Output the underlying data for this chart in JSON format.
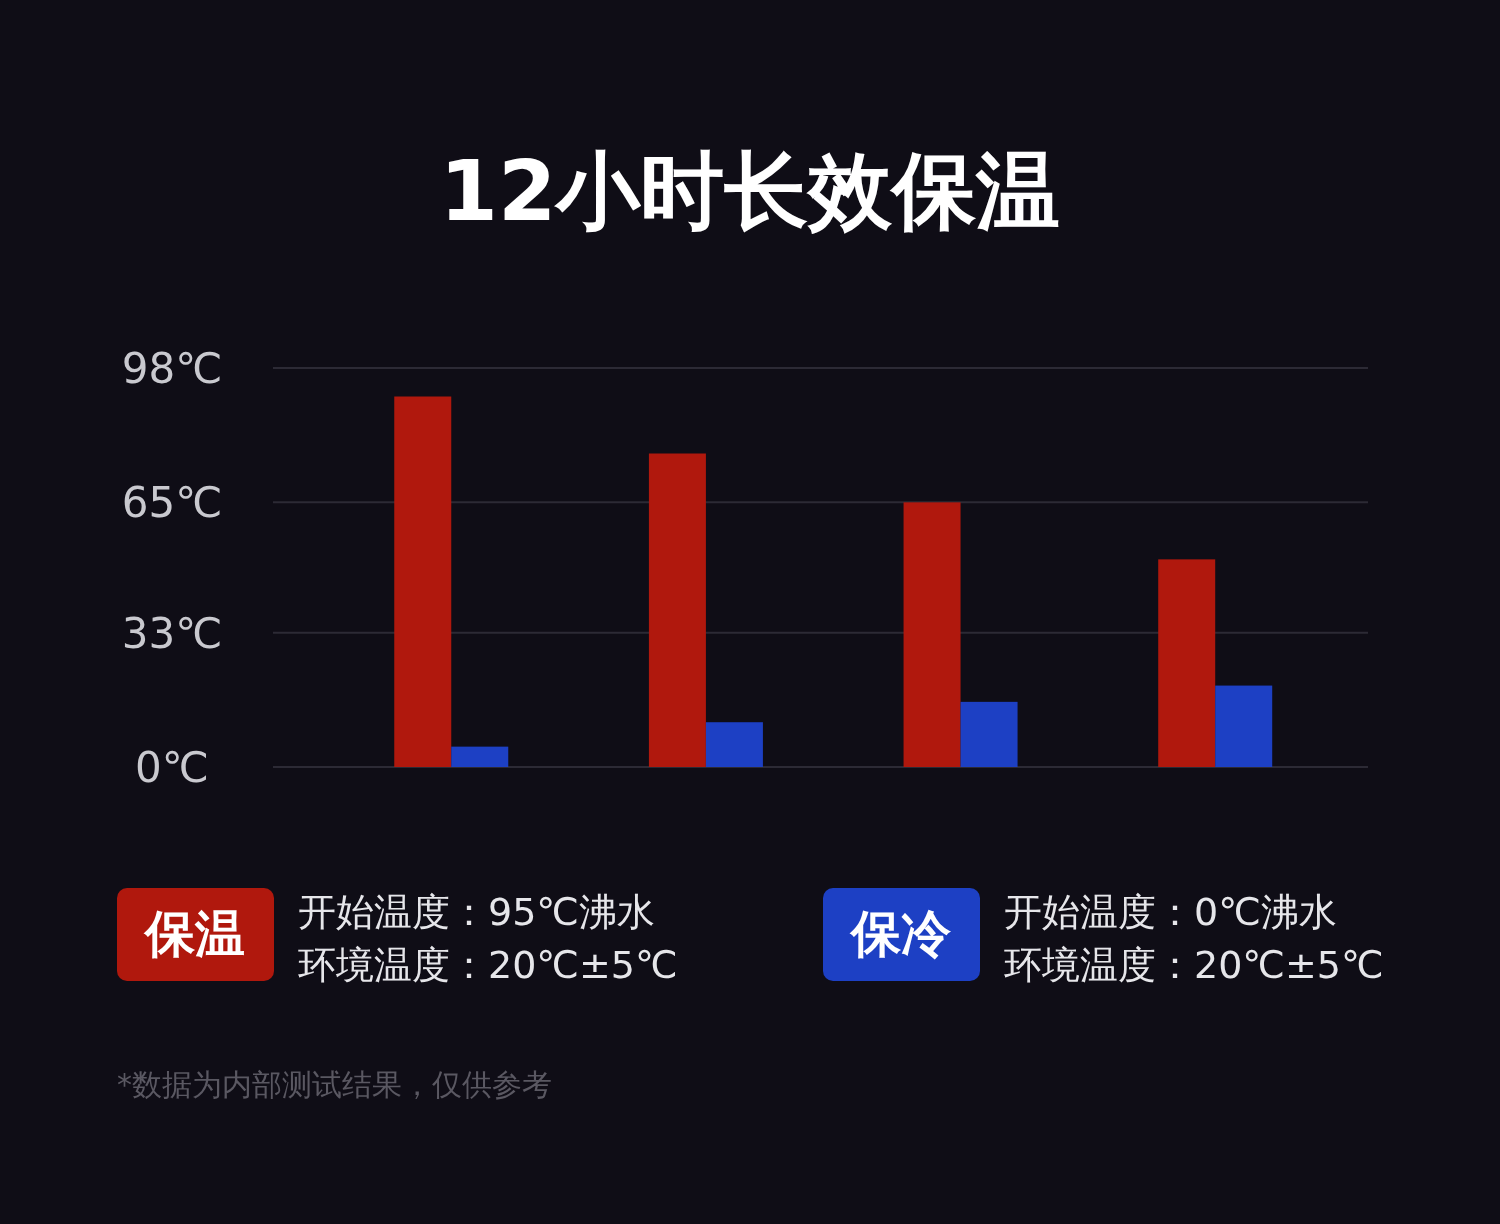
{
  "chart_data": {
    "type": "bar",
    "title": "12小时长效保温",
    "categories": [
      null,
      null,
      null,
      null
    ],
    "series": [
      {
        "name": "保温",
        "color": "#b0180d",
        "values": [
          91,
          77,
          65,
          51
        ]
      },
      {
        "name": "保冷",
        "color": "#1d40c4",
        "values": [
          5,
          11,
          16,
          20
        ]
      }
    ],
    "ylim": [
      0,
      98
    ],
    "yticks": [
      {
        "value": 0,
        "label": "0℃"
      },
      {
        "value": 33,
        "label": "33℃"
      },
      {
        "value": 65,
        "label": "65℃"
      },
      {
        "value": 98,
        "label": "98℃"
      }
    ],
    "grid": "y",
    "legend": "bottom",
    "annotations": [
      "开始温度：95℃沸水",
      "环境温度：20℃±5℃",
      "开始温度：0℃沸水",
      "环境温度：20℃±5℃",
      "*数据为内部测试结果，仅供参考"
    ]
  }
}
